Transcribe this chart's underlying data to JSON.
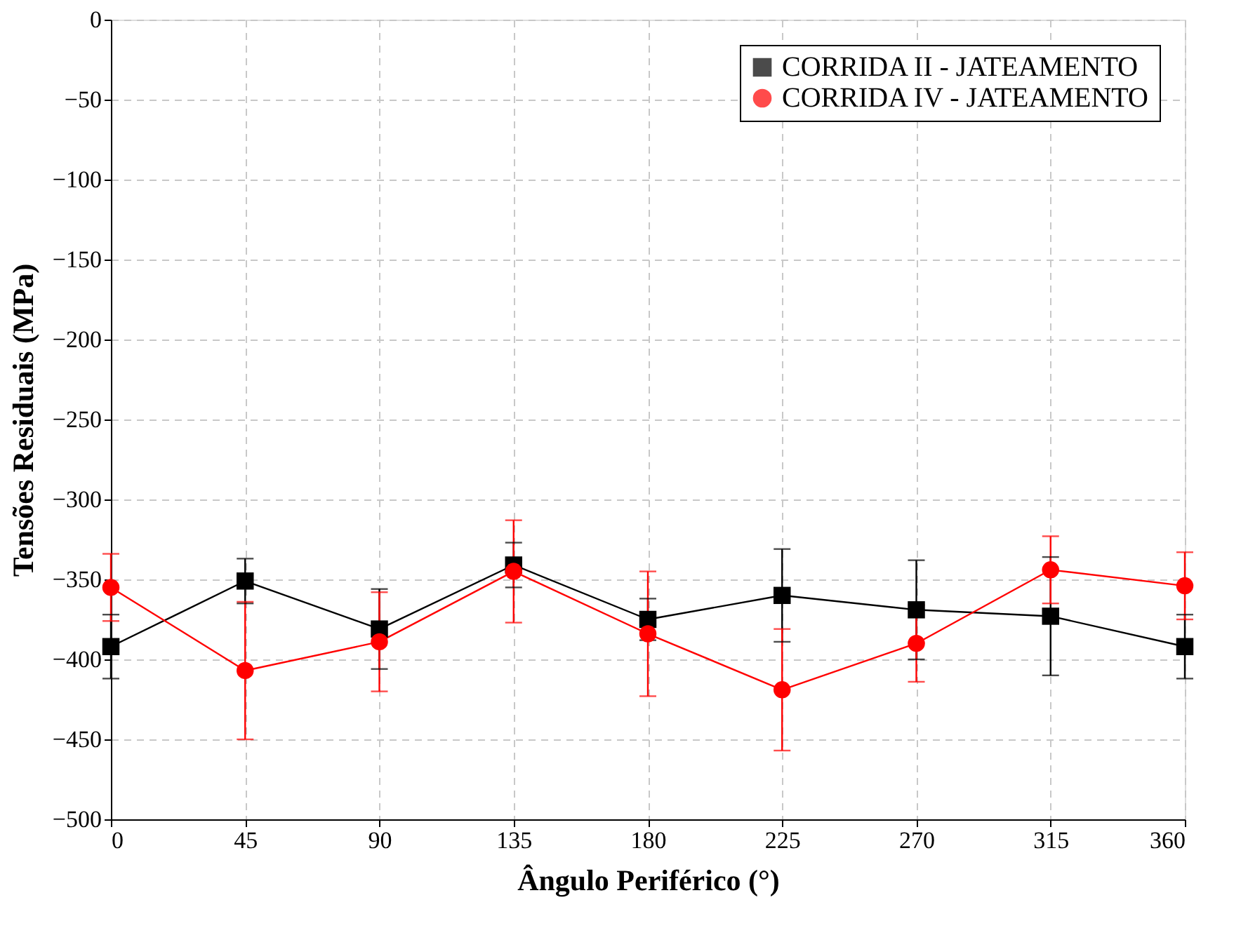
{
  "chart_data": {
    "type": "line",
    "xlabel": "Ângulo Periférico (°)",
    "ylabel": "Tensões Residuais (MPa)",
    "x": [
      0,
      45,
      90,
      135,
      180,
      225,
      270,
      315,
      360
    ],
    "series": [
      {
        "name": "CORRIDA II - JATEAMENTO",
        "color": "#000000",
        "marker": "square",
        "values": [
          -392,
          -351,
          -381,
          -341,
          -375,
          -360,
          -369,
          -373,
          -392
        ],
        "errors": [
          20,
          14,
          25,
          14,
          13,
          29,
          31,
          37,
          20
        ]
      },
      {
        "name": "CORRIDA IV - JATEAMENTO",
        "color": "#ff0000",
        "marker": "circle",
        "values": [
          -355,
          -407,
          -389,
          -345,
          -384,
          -419,
          -390,
          -344,
          -354
        ],
        "errors": [
          21,
          43,
          31,
          32,
          39,
          38,
          24,
          21,
          21
        ]
      }
    ],
    "xlim": [
      0,
      360
    ],
    "xticks": [
      0,
      45,
      90,
      135,
      180,
      225,
      270,
      315,
      360
    ],
    "ylim": [
      -500,
      0
    ],
    "yticks": [
      -500,
      -450,
      -400,
      -350,
      -300,
      -250,
      -200,
      -150,
      -100,
      -50,
      0
    ],
    "grid": true,
    "legend": "top right",
    "line_style": "solid"
  }
}
